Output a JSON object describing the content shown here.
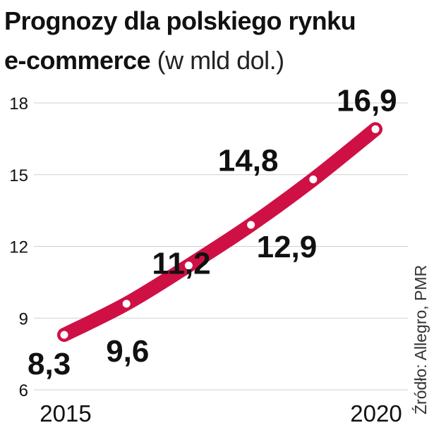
{
  "chart_data": {
    "type": "line",
    "title": "Prognozy dla polskiego rynku e-commerce",
    "title_line1": "Prognozy dla polskiego rynku",
    "title_line2": "e-commerce",
    "subtitle": "(w mld dol.)",
    "source": "Źródło: Allegro, PMR",
    "x": [
      2015,
      2016,
      2017,
      2018,
      2019,
      2020
    ],
    "x_tick_labels": [
      "2015",
      "2020"
    ],
    "y_ticks": [
      6,
      9,
      12,
      15,
      18
    ],
    "ylim": [
      6,
      18
    ],
    "grid": true,
    "series": [
      {
        "values": [
          8.3,
          9.6,
          11.2,
          12.9,
          14.8,
          16.9
        ],
        "labels": [
          "8,3",
          "9,6",
          "11,2",
          "12,9",
          "14,8",
          "16,9"
        ]
      }
    ],
    "colors": {
      "line": "#cf1045",
      "marker": "#ffffff",
      "grid": "#cfcfcf"
    }
  }
}
